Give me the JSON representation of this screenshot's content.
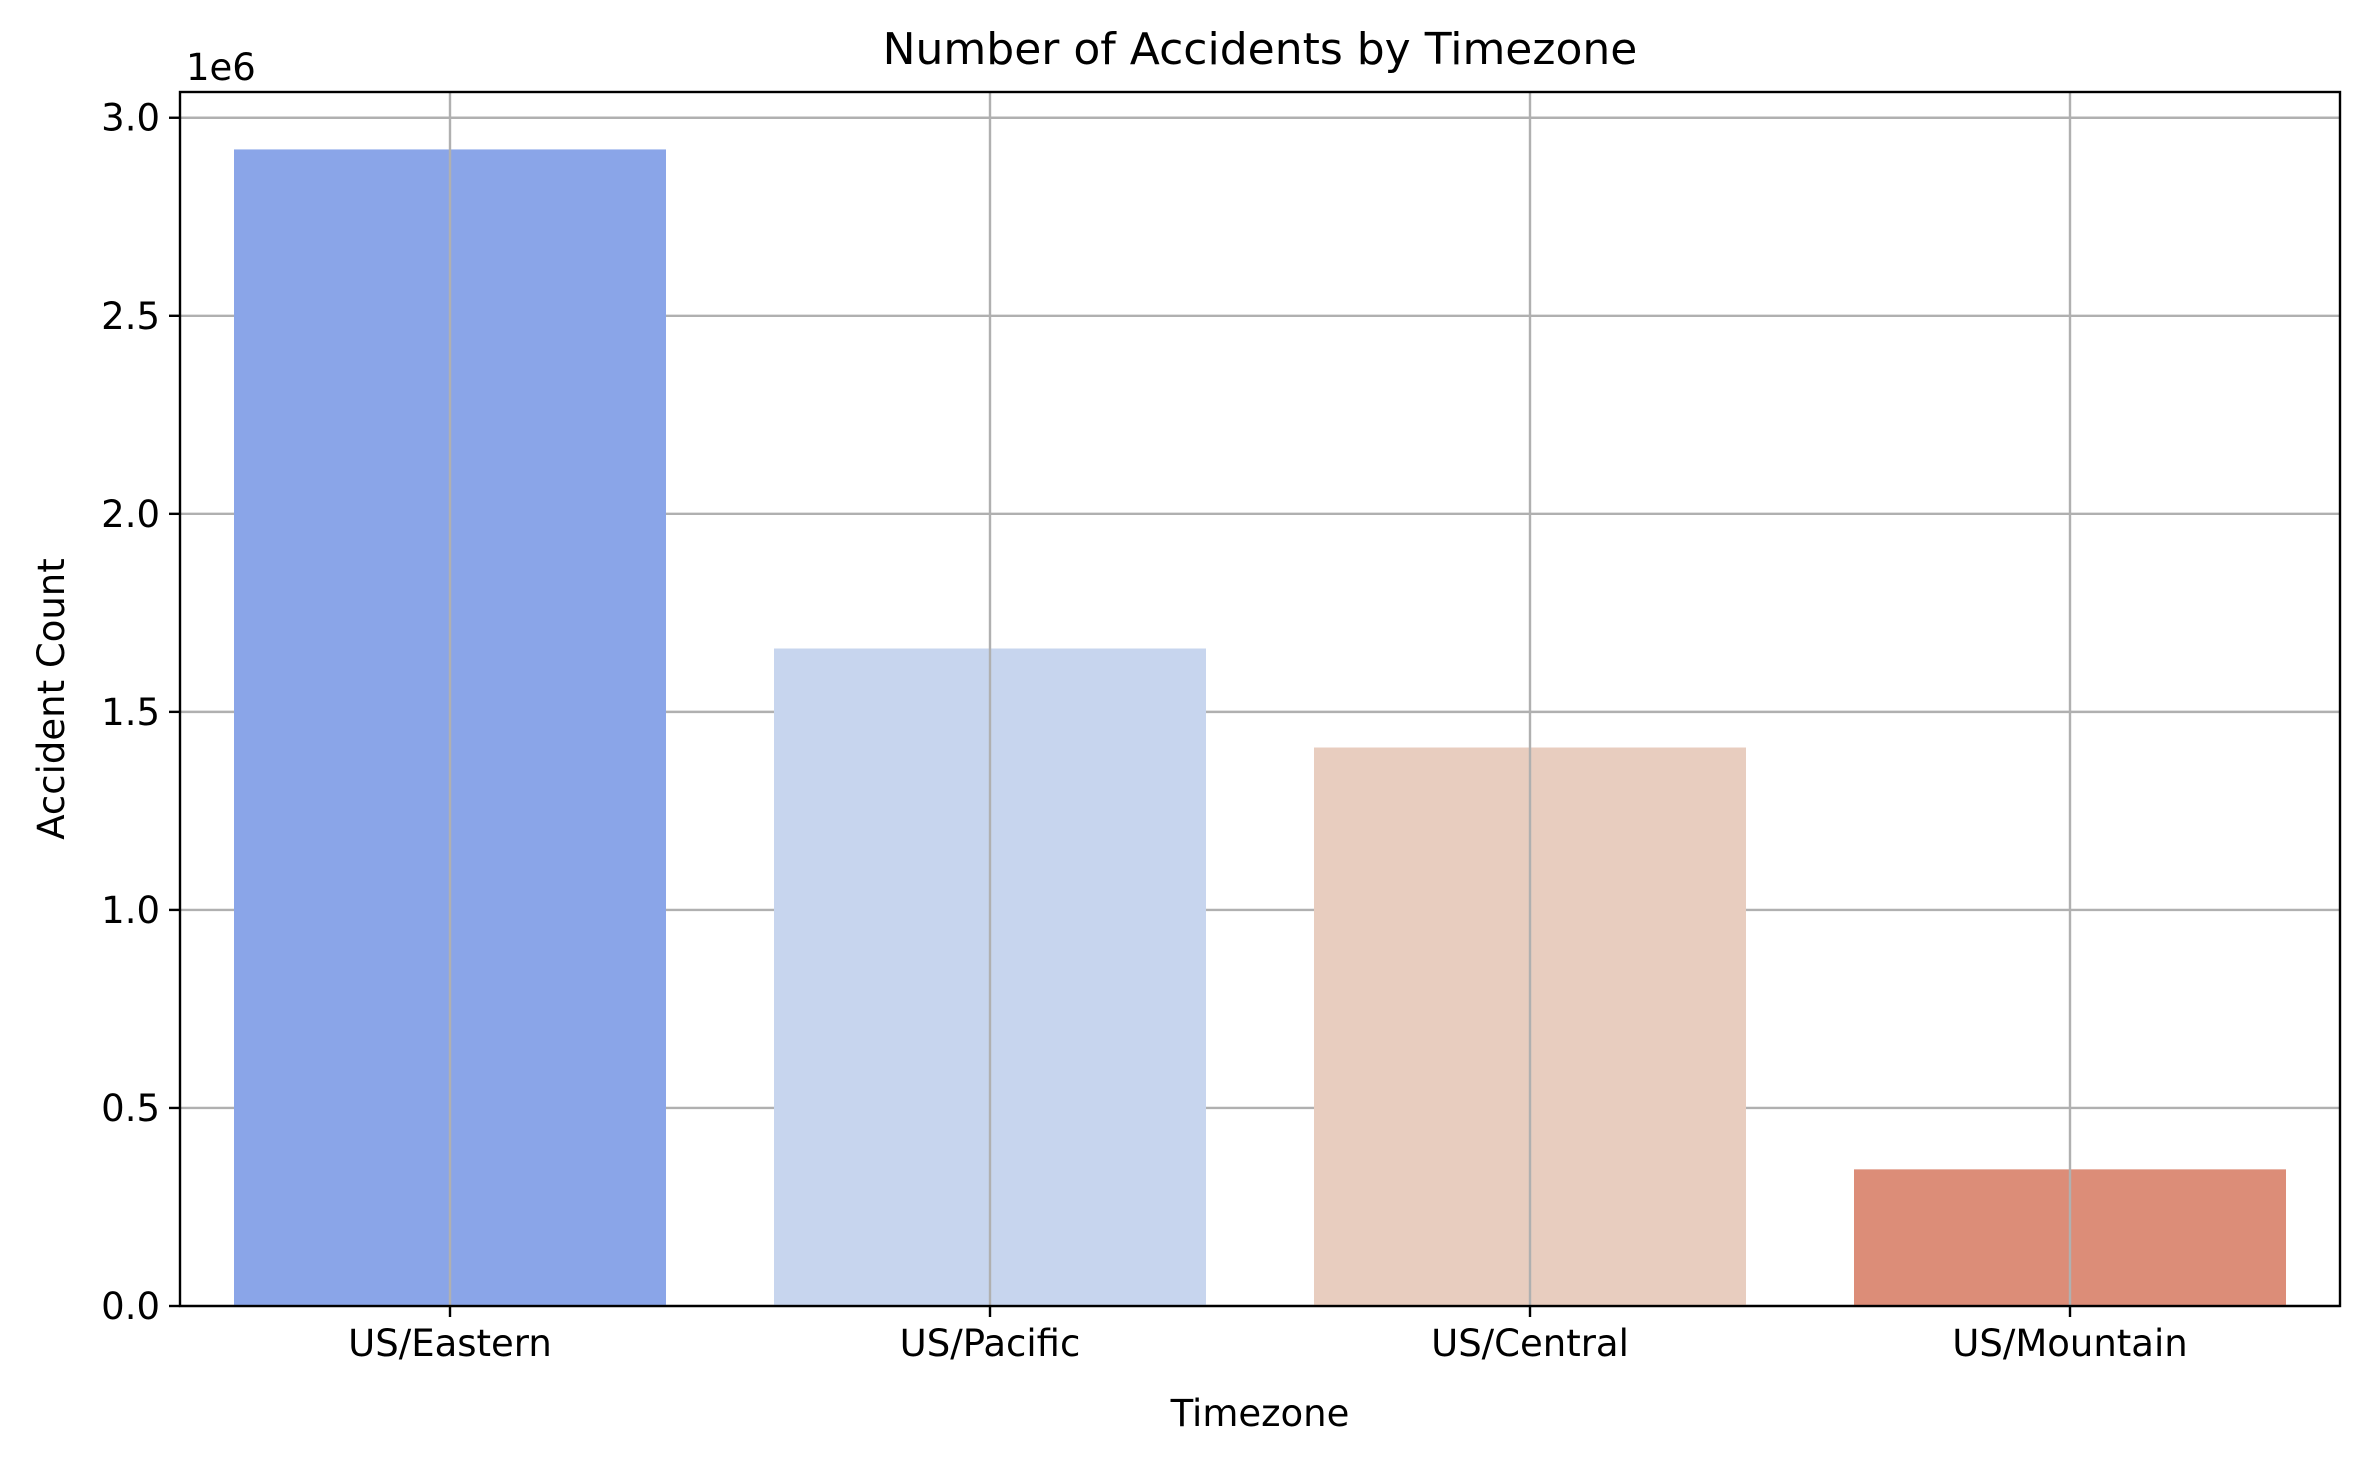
{
  "chart_data": {
    "type": "bar",
    "title": "Number of Accidents by Timezone",
    "xlabel": "Timezone",
    "ylabel": "Accident Count",
    "y_offset_label": "1e6",
    "categories": [
      "US/Eastern",
      "US/Pacific",
      "US/Central",
      "US/Mountain"
    ],
    "values": [
      2920000,
      1660000,
      1410000,
      345000
    ],
    "colors": [
      "#8aa5e8",
      "#c7d5ee",
      "#e8cdbf",
      "#dc8d78"
    ],
    "ylim": [
      0,
      3065000
    ],
    "yticks": [
      0,
      500000,
      1000000,
      1500000,
      2000000,
      2500000,
      3000000
    ],
    "ytick_labels": [
      "0.0",
      "0.5",
      "1.0",
      "1.5",
      "2.0",
      "2.5",
      "3.0"
    ],
    "grid": true,
    "legend": false
  }
}
